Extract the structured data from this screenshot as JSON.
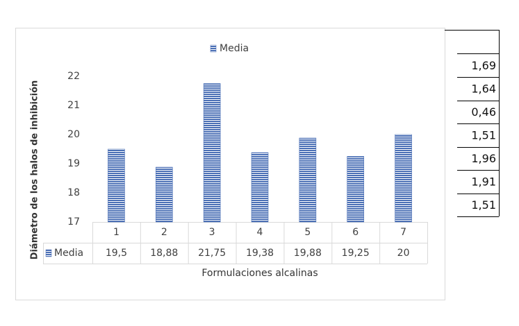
{
  "chart_data": {
    "type": "bar",
    "y_label": "Diámetro de los halos de inhibición",
    "x_label": "Formulaciones alcalinas",
    "categories": [
      "1",
      "2",
      "3",
      "4",
      "5",
      "6",
      "7"
    ],
    "series": [
      {
        "name": "Media",
        "color": "#4a6fb5",
        "values": [
          19.5,
          18.88,
          21.75,
          19.38,
          19.88,
          19.25,
          20
        ],
        "value_labels": [
          "19,5",
          "18,88",
          "21,75",
          "19,38",
          "19,88",
          "19,25",
          "20"
        ]
      }
    ],
    "ylim": [
      17,
      22
    ],
    "yticks": [
      17,
      18,
      19,
      20,
      21,
      22
    ],
    "legend": "top"
  },
  "side_table": {
    "rows": [
      "1,69",
      "1,64",
      "0,46",
      "1,51",
      "1,96",
      "1,91",
      "1,51"
    ]
  }
}
